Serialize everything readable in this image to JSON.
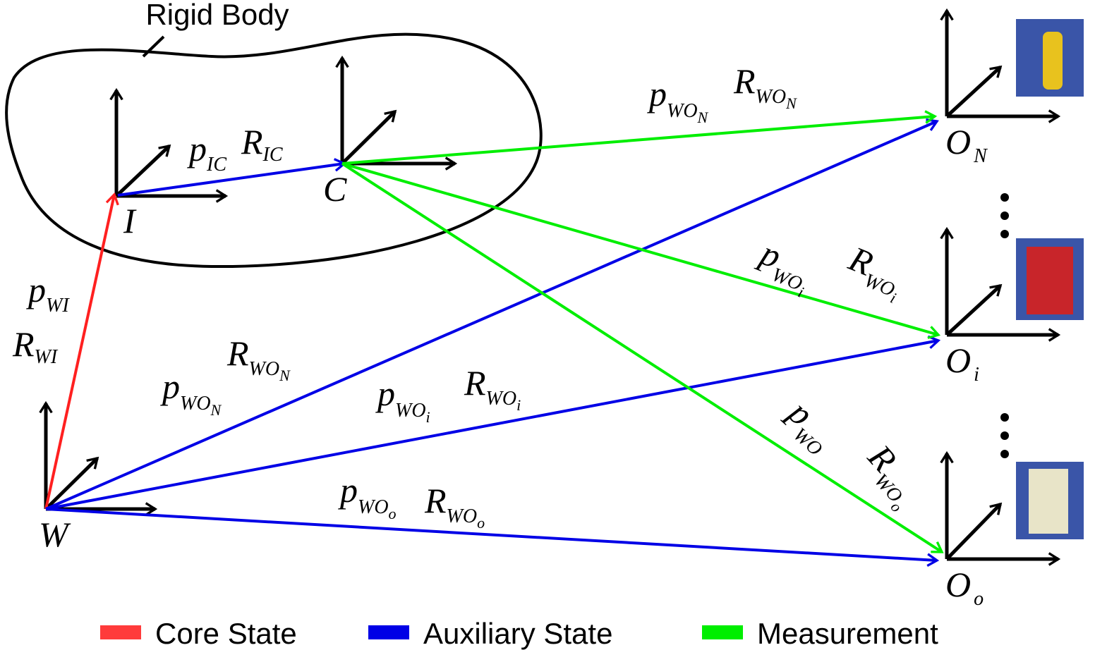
{
  "body_label": "Rigid Body",
  "frames": [
    {
      "main": "I"
    },
    {
      "main": "C"
    },
    {
      "main": "W"
    },
    {
      "main": "O",
      "sub": "N"
    },
    {
      "main": "O",
      "sub": "i"
    },
    {
      "main": "O",
      "sub": "o"
    }
  ],
  "labels": [
    {
      "main": "p",
      "sub": "WI"
    },
    {
      "main": "R",
      "sub": "WI"
    },
    {
      "main": "p",
      "sub": "IC"
    },
    {
      "main": "R",
      "sub": "IC"
    },
    {
      "main": "p",
      "sub": "WO",
      "subsub": "N"
    },
    {
      "main": "R",
      "sub": "WO",
      "subsub": "N"
    },
    {
      "main": "p",
      "sub": "WO",
      "subsub": "i"
    },
    {
      "main": "R",
      "sub": "WO",
      "subsub": "i"
    },
    {
      "main": "p",
      "sub": "WO"
    },
    {
      "main": "R",
      "sub": "WO",
      "subsub": "o"
    },
    {
      "main": "p",
      "sub": "WO",
      "subsub": "N"
    },
    {
      "main": "R",
      "sub": "WO",
      "subsub": "N"
    },
    {
      "main": "p",
      "sub": "WO",
      "subsub": "i"
    },
    {
      "main": "R",
      "sub": "WO",
      "subsub": "i"
    },
    {
      "main": "p",
      "sub": "WO",
      "subsub": "o"
    },
    {
      "main": "R",
      "sub": "WO",
      "subsub": "o"
    }
  ],
  "legend": [
    {
      "label": "Core State",
      "color": "#ff3b3b"
    },
    {
      "label": "Auxiliary State",
      "color": "#0000e6"
    },
    {
      "label": "Measurement",
      "color": "#00ee00"
    }
  ]
}
